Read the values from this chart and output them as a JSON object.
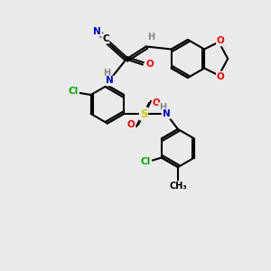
{
  "bg_color": "#ebebeb",
  "bond_color": "#000000",
  "atom_colors": {
    "N": "#0000cc",
    "O": "#ff0000",
    "Cl": "#00aa00",
    "S": "#cccc00",
    "C": "#000000",
    "H": "#888888"
  },
  "figsize": [
    3.0,
    3.0
  ],
  "dpi": 100
}
